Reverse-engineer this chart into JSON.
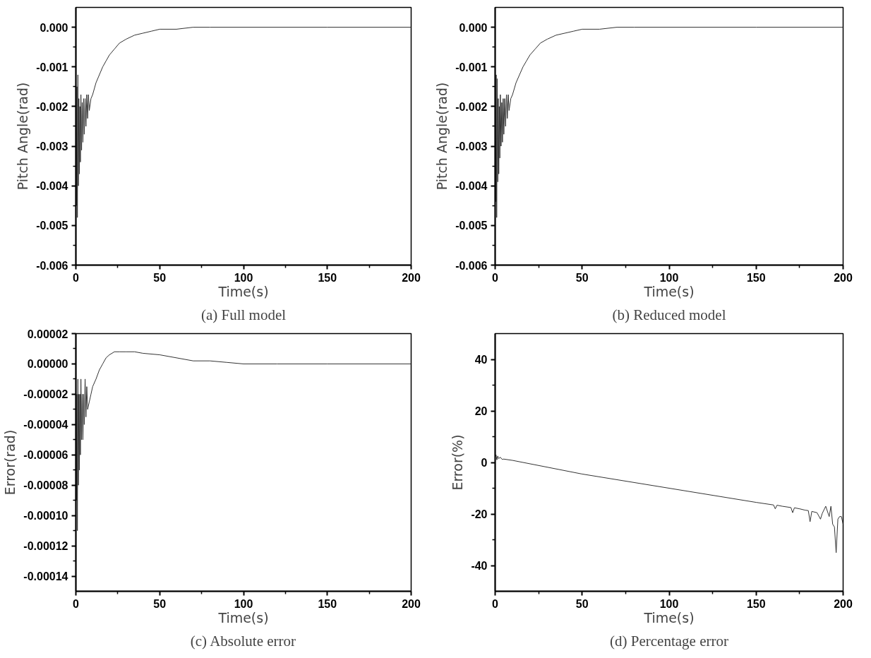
{
  "chart_data": [
    {
      "type": "line",
      "xlabel": "Time(s)",
      "ylabel": "Pitch Angle(rad)",
      "annotations": [
        "(a) Full model"
      ],
      "xlim": [
        0,
        200
      ],
      "xticks": [
        0,
        50,
        100,
        150,
        200
      ],
      "ylim": [
        -0.006,
        0.0005
      ],
      "yticks": [
        {
          "value": -0.006,
          "label": "-0.006"
        },
        {
          "value": -0.005,
          "label": "-0.005"
        },
        {
          "value": -0.004,
          "label": "-0.004"
        },
        {
          "value": -0.003,
          "label": "-0.003"
        },
        {
          "value": -0.002,
          "label": "-0.002"
        },
        {
          "value": -0.001,
          "label": "-0.001"
        },
        {
          "value": 0,
          "label": "0.000"
        }
      ],
      "grid": false,
      "line_style": "solid",
      "series": [
        {
          "color": "#333333",
          "x": [
            0,
            0.3,
            0.6,
            0.9,
            1.2,
            1.5,
            1.8,
            2.1,
            2.4,
            2.7,
            3.0,
            3.4,
            3.8,
            4.2,
            4.6,
            5.0,
            5.5,
            6,
            6.5,
            7,
            7.5,
            8,
            9,
            10,
            12,
            14,
            16,
            18,
            20,
            23,
            26,
            30,
            35,
            40,
            45,
            50,
            60,
            70,
            80,
            100,
            150,
            200
          ],
          "values": [
            -0.0013,
            -0.0045,
            -0.0015,
            -0.0048,
            -0.0012,
            -0.004,
            -0.0018,
            -0.0037,
            -0.002,
            -0.0034,
            -0.0017,
            -0.0031,
            -0.0019,
            -0.0029,
            -0.0018,
            -0.0027,
            -0.0018,
            -0.0025,
            -0.0017,
            -0.0023,
            -0.0017,
            -0.0021,
            -0.0018,
            -0.0017,
            -0.0014,
            -0.0012,
            -0.001,
            -0.00085,
            -0.0007,
            -0.00055,
            -0.0004,
            -0.0003,
            -0.0002,
            -0.00015,
            -0.0001,
            -5e-05,
            -5e-05,
            0,
            0,
            0,
            0,
            0
          ]
        }
      ]
    },
    {
      "type": "line",
      "xlabel": "Time(s)",
      "ylabel": "Pitch Angle(rad)",
      "annotations": [
        "(b) Reduced model"
      ],
      "xlim": [
        0,
        200
      ],
      "xticks": [
        0,
        50,
        100,
        150,
        200
      ],
      "ylim": [
        -0.006,
        0.0005
      ],
      "yticks": [
        {
          "value": -0.006,
          "label": "-0.006"
        },
        {
          "value": -0.005,
          "label": "-0.005"
        },
        {
          "value": -0.004,
          "label": "-0.004"
        },
        {
          "value": -0.003,
          "label": "-0.003"
        },
        {
          "value": -0.002,
          "label": "-0.002"
        },
        {
          "value": -0.001,
          "label": "-0.001"
        },
        {
          "value": 0,
          "label": "0.000"
        }
      ],
      "grid": false,
      "line_style": "solid",
      "series": [
        {
          "color": "#333333",
          "x": [
            0,
            0.3,
            0.6,
            0.9,
            1.2,
            1.5,
            1.8,
            2.1,
            2.4,
            2.7,
            3.0,
            3.4,
            3.8,
            4.2,
            4.6,
            5.0,
            5.5,
            6,
            6.5,
            7,
            7.5,
            8,
            9,
            10,
            12,
            14,
            16,
            18,
            20,
            23,
            26,
            30,
            35,
            40,
            45,
            50,
            60,
            70,
            80,
            100,
            150,
            200
          ],
          "values": [
            -0.0014,
            -0.0044,
            -0.0012,
            -0.0048,
            -0.0013,
            -0.0039,
            -0.0018,
            -0.0037,
            -0.002,
            -0.0033,
            -0.0017,
            -0.003,
            -0.0019,
            -0.0029,
            -0.0018,
            -0.0027,
            -0.0018,
            -0.0025,
            -0.0017,
            -0.0023,
            -0.0017,
            -0.0021,
            -0.0018,
            -0.0017,
            -0.0014,
            -0.0012,
            -0.001,
            -0.00085,
            -0.0007,
            -0.00055,
            -0.0004,
            -0.0003,
            -0.0002,
            -0.00015,
            -0.0001,
            -5e-05,
            -5e-05,
            0,
            0,
            0,
            0,
            0
          ]
        }
      ]
    },
    {
      "type": "line",
      "xlabel": "Time(s)",
      "ylabel": "Error(rad)",
      "annotations": [
        "(c) Absolute error"
      ],
      "xlim": [
        0,
        200
      ],
      "xticks": [
        0,
        50,
        100,
        150,
        200
      ],
      "ylim": [
        -0.00015,
        2e-05
      ],
      "yticks": [
        {
          "value": -0.00014,
          "label": "-0.00014"
        },
        {
          "value": -0.00012,
          "label": "-0.00012"
        },
        {
          "value": -0.0001,
          "label": "-0.00010"
        },
        {
          "value": -8e-05,
          "label": "-0.00008"
        },
        {
          "value": -6e-05,
          "label": "-0.00006"
        },
        {
          "value": -4e-05,
          "label": "-0.00004"
        },
        {
          "value": -2e-05,
          "label": "-0.00002"
        },
        {
          "value": 0,
          "label": "0.00000"
        },
        {
          "value": 2e-05,
          "label": "0.00002"
        }
      ],
      "grid": false,
      "line_style": "solid",
      "series": [
        {
          "color": "#333333",
          "x": [
            0,
            0.3,
            0.6,
            0.9,
            1.2,
            1.5,
            1.8,
            2.1,
            2.4,
            2.7,
            3.0,
            3.4,
            3.8,
            4.2,
            4.6,
            5,
            5.5,
            6,
            6.5,
            7,
            8,
            9,
            10,
            12,
            14,
            16,
            18,
            20,
            23,
            26,
            30,
            35,
            40,
            50,
            60,
            70,
            80,
            90,
            100,
            120,
            150,
            200
          ],
          "values": [
            0,
            -9e-05,
            -2e-05,
            -0.00011,
            -1e-05,
            -8e-05,
            -2e-05,
            -7e-05,
            -2e-05,
            -6e-05,
            -1e-05,
            -5e-05,
            -2e-05,
            -5e-05,
            -2e-05,
            -4e-05,
            -1e-05,
            -3.5e-05,
            -1.5e-05,
            -3e-05,
            -2.5e-05,
            -2e-05,
            -1.5e-05,
            -1e-05,
            -4e-06,
            0,
            4e-06,
            6e-06,
            8e-06,
            8e-06,
            8e-06,
            8e-06,
            7e-06,
            6e-06,
            4e-06,
            2e-06,
            2e-06,
            1e-06,
            0,
            0,
            0,
            0
          ]
        }
      ]
    },
    {
      "type": "line",
      "xlabel": "Time(s)",
      "ylabel": "Error(%)",
      "annotations": [
        "(d) Percentage error"
      ],
      "xlim": [
        0,
        200
      ],
      "xticks": [
        0,
        50,
        100,
        150,
        200
      ],
      "ylim": [
        -50,
        50
      ],
      "yticks": [
        -40,
        -20,
        0,
        20,
        40
      ],
      "grid": false,
      "line_style": "solid",
      "series": [
        {
          "color": "#333333",
          "x": [
            0,
            0.5,
            1,
            1.5,
            2,
            3,
            4,
            5,
            10,
            50,
            100,
            150,
            160,
            161,
            162,
            165,
            170,
            171,
            172,
            175,
            178,
            180,
            181,
            182,
            185,
            187,
            188,
            190,
            192,
            193,
            194,
            195,
            196,
            197,
            198,
            199,
            200
          ],
          "values": [
            2,
            3,
            1,
            2.5,
            1.5,
            2,
            1.2,
            1.3,
            0.8,
            -4.5,
            -10,
            -15.5,
            -16.5,
            -18,
            -16.6,
            -17,
            -17.5,
            -19.5,
            -17.6,
            -18,
            -18.5,
            -18.7,
            -23,
            -19,
            -19.5,
            -22,
            -19.8,
            -17,
            -21,
            -17,
            -24,
            -25,
            -35,
            -22,
            -21,
            -21,
            -24
          ]
        }
      ]
    }
  ]
}
